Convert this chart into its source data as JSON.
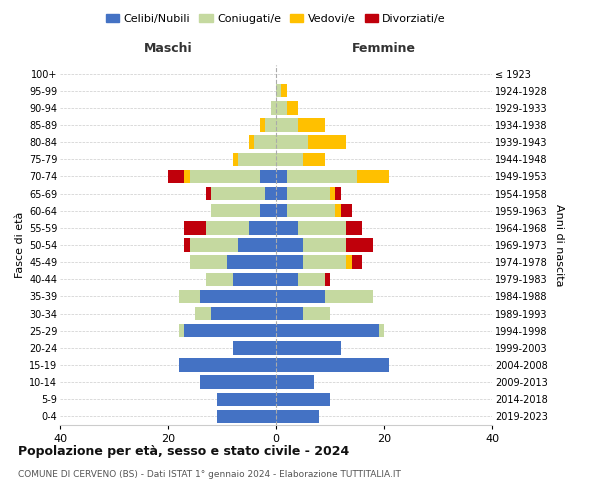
{
  "age_groups": [
    "0-4",
    "5-9",
    "10-14",
    "15-19",
    "20-24",
    "25-29",
    "30-34",
    "35-39",
    "40-44",
    "45-49",
    "50-54",
    "55-59",
    "60-64",
    "65-69",
    "70-74",
    "75-79",
    "80-84",
    "85-89",
    "90-94",
    "95-99",
    "100+"
  ],
  "birth_years": [
    "2019-2023",
    "2014-2018",
    "2009-2013",
    "2004-2008",
    "1999-2003",
    "1994-1998",
    "1989-1993",
    "1984-1988",
    "1979-1983",
    "1974-1978",
    "1969-1973",
    "1964-1968",
    "1959-1963",
    "1954-1958",
    "1949-1953",
    "1944-1948",
    "1939-1943",
    "1934-1938",
    "1929-1933",
    "1924-1928",
    "≤ 1923"
  ],
  "maschi": {
    "celibi": [
      11,
      11,
      14,
      18,
      8,
      17,
      12,
      14,
      8,
      9,
      7,
      5,
      3,
      2,
      3,
      0,
      0,
      0,
      0,
      0,
      0
    ],
    "coniugati": [
      0,
      0,
      0,
      0,
      0,
      1,
      3,
      4,
      5,
      7,
      9,
      8,
      9,
      10,
      13,
      7,
      4,
      2,
      1,
      0,
      0
    ],
    "vedovi": [
      0,
      0,
      0,
      0,
      0,
      0,
      0,
      0,
      0,
      0,
      0,
      0,
      0,
      0,
      1,
      1,
      1,
      1,
      0,
      0,
      0
    ],
    "divorziati": [
      0,
      0,
      0,
      0,
      0,
      0,
      0,
      0,
      0,
      0,
      1,
      4,
      0,
      1,
      3,
      0,
      0,
      0,
      0,
      0,
      0
    ]
  },
  "femmine": {
    "nubili": [
      8,
      10,
      7,
      21,
      12,
      19,
      5,
      9,
      4,
      5,
      5,
      4,
      2,
      2,
      2,
      0,
      0,
      0,
      0,
      0,
      0
    ],
    "coniugate": [
      0,
      0,
      0,
      0,
      0,
      1,
      5,
      9,
      5,
      8,
      8,
      9,
      9,
      8,
      13,
      5,
      6,
      4,
      2,
      1,
      0
    ],
    "vedove": [
      0,
      0,
      0,
      0,
      0,
      0,
      0,
      0,
      0,
      1,
      0,
      0,
      1,
      1,
      6,
      4,
      7,
      5,
      2,
      1,
      0
    ],
    "divorziate": [
      0,
      0,
      0,
      0,
      0,
      0,
      0,
      0,
      1,
      2,
      5,
      3,
      2,
      1,
      0,
      0,
      0,
      0,
      0,
      0,
      0
    ]
  },
  "colors": {
    "celibi_nubili": "#4472c4",
    "coniugati": "#c5d9a0",
    "vedovi": "#ffc000",
    "divorziati": "#c0000b"
  },
  "title": "Popolazione per età, sesso e stato civile - 2024",
  "subtitle": "COMUNE DI CERVENO (BS) - Dati ISTAT 1° gennaio 2024 - Elaborazione TUTTITALIA.IT",
  "xlabel_left": "Maschi",
  "xlabel_right": "Femmine",
  "ylabel_left": "Fasce di età",
  "ylabel_right": "Anni di nascita",
  "xlim": 40,
  "legend_labels": [
    "Celibi/Nubili",
    "Coniugati/e",
    "Vedovi/e",
    "Divorziati/e"
  ],
  "background_color": "#ffffff",
  "grid_color": "#cccccc"
}
